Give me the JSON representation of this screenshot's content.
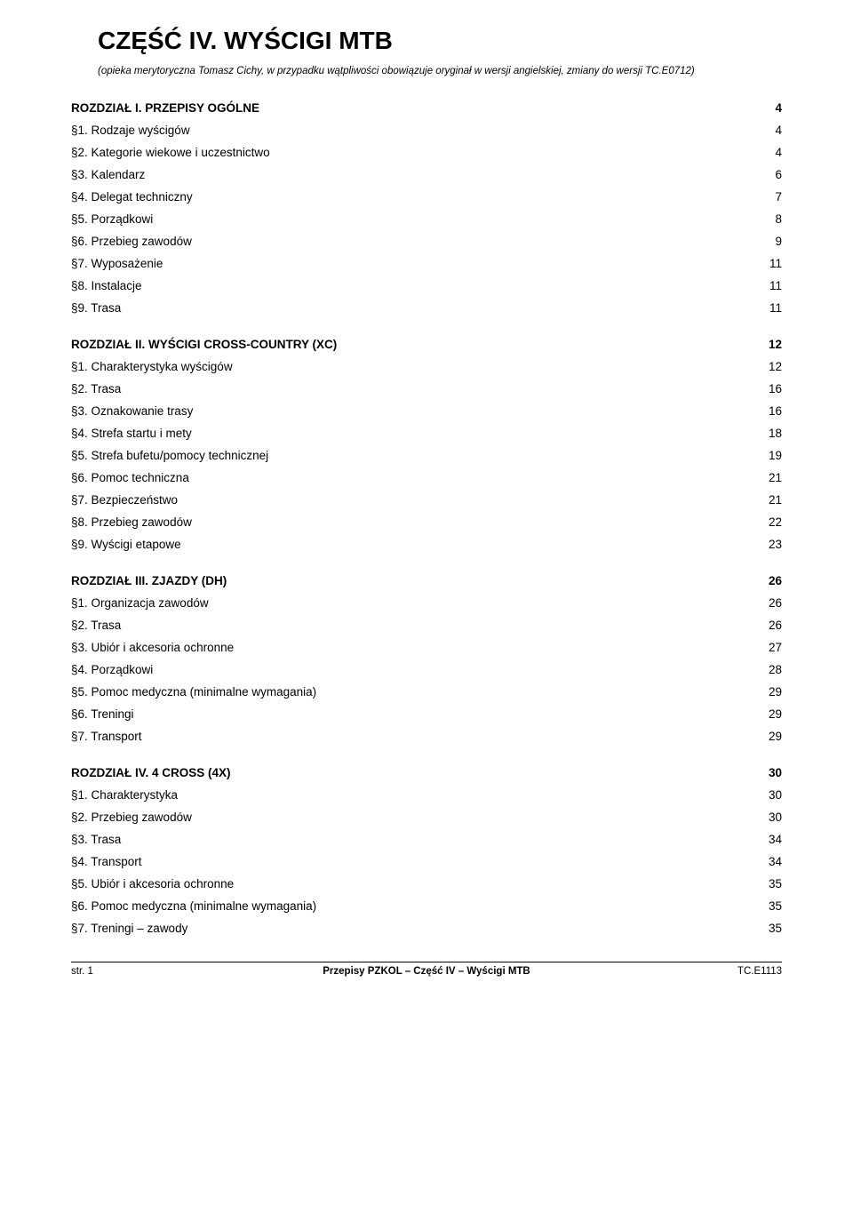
{
  "title": "CZĘŚĆ IV. WYŚCIGI MTB",
  "subtitle": "(opieka merytoryczna Tomasz Cichy, w przypadku wątpliwości obowiązuje oryginał w wersji angielskiej, zmiany do wersji TC.E0712)",
  "sections": [
    {
      "heading": "ROZDZIAŁ I. PRZEPISY OGÓLNE",
      "page": "4",
      "items": [
        {
          "label": "§1. Rodzaje wyścigów",
          "page": "4"
        },
        {
          "label": "§2. Kategorie wiekowe i uczestnictwo",
          "page": "4"
        },
        {
          "label": "§3. Kalendarz",
          "page": "6"
        },
        {
          "label": "§4. Delegat techniczny",
          "page": "7"
        },
        {
          "label": "§5. Porządkowi",
          "page": "8"
        },
        {
          "label": "§6. Przebieg zawodów",
          "page": "9"
        },
        {
          "label": "§7. Wyposażenie",
          "page": "11"
        },
        {
          "label": "§8. Instalacje",
          "page": "11"
        },
        {
          "label": "§9. Trasa",
          "page": "11"
        }
      ]
    },
    {
      "heading": "ROZDZIAŁ II. WYŚCIGI CROSS-COUNTRY (XC)",
      "page": "12",
      "items": [
        {
          "label": "§1. Charakterystyka wyścigów",
          "page": "12"
        },
        {
          "label": "§2. Trasa",
          "page": "16"
        },
        {
          "label": "§3. Oznakowanie trasy",
          "page": "16"
        },
        {
          "label": "§4. Strefa startu i mety",
          "page": "18"
        },
        {
          "label": "§5. Strefa bufetu/pomocy technicznej",
          "page": "19"
        },
        {
          "label": "§6. Pomoc techniczna",
          "page": "21"
        },
        {
          "label": "§7. Bezpieczeństwo",
          "page": "21"
        },
        {
          "label": "§8. Przebieg zawodów",
          "page": "22"
        },
        {
          "label": "§9. Wyścigi etapowe",
          "page": "23"
        }
      ]
    },
    {
      "heading": "ROZDZIAŁ III. ZJAZDY (DH)",
      "page": "26",
      "items": [
        {
          "label": "§1. Organizacja zawodów",
          "page": "26"
        },
        {
          "label": "§2. Trasa",
          "page": "26"
        },
        {
          "label": "§3. Ubiór i akcesoria ochronne",
          "page": "27"
        },
        {
          "label": "§4. Porządkowi",
          "page": "28"
        },
        {
          "label": "§5. Pomoc medyczna (minimalne wymagania)",
          "page": "29"
        },
        {
          "label": "§6. Treningi",
          "page": "29"
        },
        {
          "label": "§7. Transport",
          "page": "29"
        }
      ]
    },
    {
      "heading": "ROZDZIAŁ IV. 4 CROSS (4X)",
      "page": "30",
      "items": [
        {
          "label": "§1. Charakterystyka",
          "page": "30"
        },
        {
          "label": "§2. Przebieg zawodów",
          "page": "30"
        },
        {
          "label": "§3. Trasa",
          "page": "34"
        },
        {
          "label": "§4. Transport",
          "page": "34"
        },
        {
          "label": "§5. Ubiór i akcesoria ochronne",
          "page": "35"
        },
        {
          "label": "§6. Pomoc medyczna (minimalne wymagania)",
          "page": "35"
        },
        {
          "label": "§7. Treningi – zawody",
          "page": "35"
        }
      ]
    }
  ],
  "footer": {
    "left": "str. 1",
    "center": "Przepisy PZKOL – Część IV – Wyścigi MTB",
    "right": "TC.E1113"
  },
  "colors": {
    "text": "#000000",
    "background": "#ffffff",
    "rule": "#000000"
  },
  "typography": {
    "title_fontsize_pt": 21,
    "subtitle_fontsize_pt": 8.5,
    "heading_fontsize_pt": 10,
    "body_fontsize_pt": 10,
    "footer_fontsize_pt": 8.5,
    "font_family": "Arial"
  }
}
